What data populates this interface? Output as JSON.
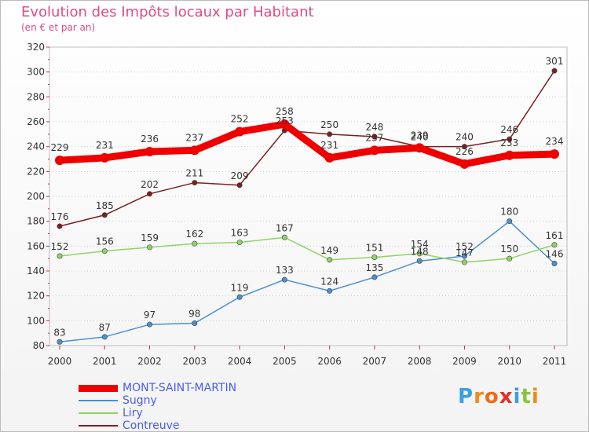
{
  "title": "Evolution des Impôts locaux par Habitant",
  "subtitle": "(en € et par an)",
  "logo": {
    "text": "Proxiti",
    "letters": [
      "P",
      "r",
      "o",
      "x",
      "i",
      "t",
      "i"
    ],
    "colors": [
      "#3aa0e0",
      "#f28a1a",
      "#ef6a1c",
      "#e63022",
      "#3aa0e0",
      "#8ac43f",
      "#f28a1a"
    ]
  },
  "chart_data": {
    "type": "line",
    "title": "Evolution des Impôts locaux par Habitant",
    "subtitle": "(en € et par an)",
    "x": [
      "2000",
      "2001",
      "2002",
      "2003",
      "2004",
      "2005",
      "2006",
      "2007",
      "2008",
      "2009",
      "2010",
      "2011"
    ],
    "ylim": [
      80,
      320
    ],
    "yticks": [
      80,
      100,
      120,
      140,
      160,
      180,
      200,
      220,
      240,
      260,
      280,
      300,
      320
    ],
    "grid": "horizontal",
    "legend_position": "bottom-left",
    "series": [
      {
        "name": "MONT-SAINT-MARTIN",
        "color": "#ee0000",
        "thick": true,
        "values": [
          229,
          231,
          236,
          237,
          252,
          258,
          231,
          237,
          239,
          226,
          233,
          234
        ]
      },
      {
        "name": "Sugny",
        "color": "#4a90d0",
        "thick": false,
        "values": [
          83,
          87,
          97,
          98,
          119,
          133,
          124,
          135,
          148,
          152,
          180,
          146
        ]
      },
      {
        "name": "Liry",
        "color": "#8fd466",
        "thick": false,
        "values": [
          152,
          156,
          159,
          162,
          163,
          167,
          149,
          151,
          154,
          147,
          150,
          161
        ]
      },
      {
        "name": "Contreuve",
        "color": "#7a1f22",
        "thick": false,
        "values": [
          176,
          185,
          202,
          211,
          209,
          253,
          250,
          248,
          240,
          240,
          246,
          301
        ]
      }
    ],
    "data_labels": [
      {
        "series": 3,
        "index": 0,
        "text": "176"
      },
      {
        "series": 3,
        "index": 1,
        "text": "185"
      },
      {
        "series": 3,
        "index": 2,
        "text": "202"
      },
      {
        "series": 3,
        "index": 3,
        "text": "211"
      },
      {
        "series": 3,
        "index": 4,
        "text": "209"
      },
      {
        "series": 3,
        "index": 5,
        "text": "253"
      },
      {
        "series": 3,
        "index": 6,
        "text": "250"
      },
      {
        "series": 3,
        "index": 7,
        "text": "248"
      },
      {
        "series": 3,
        "index": 8,
        "text": "240"
      },
      {
        "series": 3,
        "index": 9,
        "text": "240"
      },
      {
        "series": 3,
        "index": 10,
        "text": "246"
      },
      {
        "series": 3,
        "index": 11,
        "text": "301"
      },
      {
        "series": 0,
        "index": 0,
        "text": "229"
      },
      {
        "series": 0,
        "index": 1,
        "text": "231"
      },
      {
        "series": 0,
        "index": 2,
        "text": "236"
      },
      {
        "series": 0,
        "index": 3,
        "text": "237"
      },
      {
        "series": 0,
        "index": 4,
        "text": "252"
      },
      {
        "series": 0,
        "index": 5,
        "text": "258"
      },
      {
        "series": 0,
        "index": 6,
        "text": "231"
      },
      {
        "series": 0,
        "index": 7,
        "text": "237"
      },
      {
        "series": 0,
        "index": 8,
        "text": "239"
      },
      {
        "series": 0,
        "index": 9,
        "text": "226"
      },
      {
        "series": 0,
        "index": 10,
        "text": "233"
      },
      {
        "series": 0,
        "index": 11,
        "text": "234"
      },
      {
        "series": 2,
        "index": 0,
        "text": "152"
      },
      {
        "series": 2,
        "index": 1,
        "text": "156"
      },
      {
        "series": 2,
        "index": 2,
        "text": "159"
      },
      {
        "series": 2,
        "index": 3,
        "text": "162"
      },
      {
        "series": 2,
        "index": 4,
        "text": "163"
      },
      {
        "series": 2,
        "index": 5,
        "text": "167"
      },
      {
        "series": 2,
        "index": 6,
        "text": "149"
      },
      {
        "series": 2,
        "index": 7,
        "text": "151"
      },
      {
        "series": 2,
        "index": 8,
        "text": "154"
      },
      {
        "series": 2,
        "index": 9,
        "text": "147"
      },
      {
        "series": 2,
        "index": 10,
        "text": "150"
      },
      {
        "series": 2,
        "index": 11,
        "text": "161"
      },
      {
        "series": 1,
        "index": 0,
        "text": "83"
      },
      {
        "series": 1,
        "index": 1,
        "text": "87"
      },
      {
        "series": 1,
        "index": 2,
        "text": "97"
      },
      {
        "series": 1,
        "index": 3,
        "text": "98"
      },
      {
        "series": 1,
        "index": 4,
        "text": "119"
      },
      {
        "series": 1,
        "index": 5,
        "text": "133"
      },
      {
        "series": 1,
        "index": 6,
        "text": "124"
      },
      {
        "series": 1,
        "index": 7,
        "text": "135"
      },
      {
        "series": 1,
        "index": 8,
        "text": "148"
      },
      {
        "series": 1,
        "index": 9,
        "text": "152"
      },
      {
        "series": 1,
        "index": 10,
        "text": "180"
      },
      {
        "series": 1,
        "index": 11,
        "text": "146"
      }
    ]
  }
}
